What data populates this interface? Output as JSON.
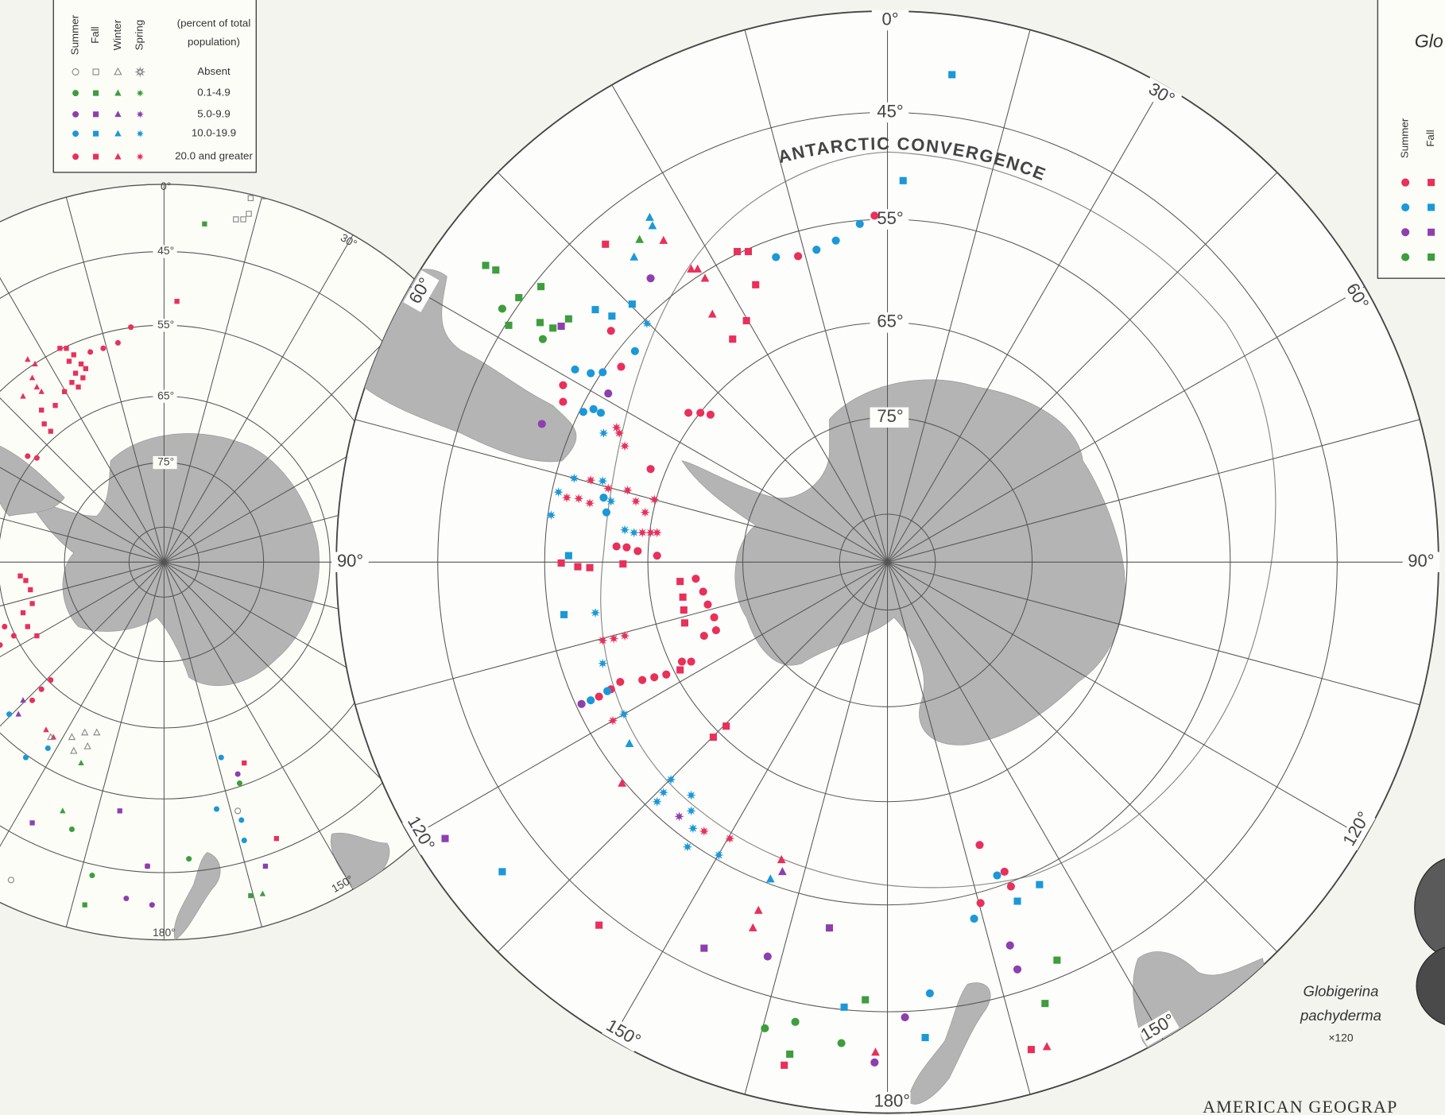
{
  "legend": {
    "unit_lines": [
      "(percent of total",
      "population)"
    ],
    "seasons": [
      "Summer",
      "Fall",
      "Winter",
      "Spring"
    ],
    "classes": [
      {
        "label": "Absent",
        "color": "#8a8a8a"
      },
      {
        "label": "0.1-4.9",
        "color": "#3e9d3e"
      },
      {
        "label": "5.0-9.9",
        "color": "#8e3fae"
      },
      {
        "label": "10.0-19.9",
        "color": "#1a98d8"
      },
      {
        "label": "20.0 and greater",
        "color": "#e8305a"
      }
    ]
  },
  "main_map": {
    "convergence_label": "ANTARCTIC CONVERGENCE",
    "latitude_labels": [
      "45°",
      "55°",
      "65°",
      "75°"
    ],
    "meridian_labels": [
      "0°",
      "30°",
      "60°",
      "90°",
      "120°",
      "150°",
      "180°",
      "150°",
      "120°",
      "90°",
      "60°"
    ]
  },
  "inset_map": {
    "latitude_labels": [
      "45°",
      "55°",
      "65°",
      "75°"
    ],
    "meridian_labels": [
      "0°",
      "30°",
      "150°",
      "180°"
    ]
  },
  "right_legend": {
    "title": "Glo",
    "seasons": [
      "Summer",
      "Fall"
    ]
  },
  "specimen": {
    "name_lines": [
      "Globigerina",
      "pachyderma"
    ],
    "magnification": "×120"
  },
  "footer": "AMERICAN GEOGRAP"
}
